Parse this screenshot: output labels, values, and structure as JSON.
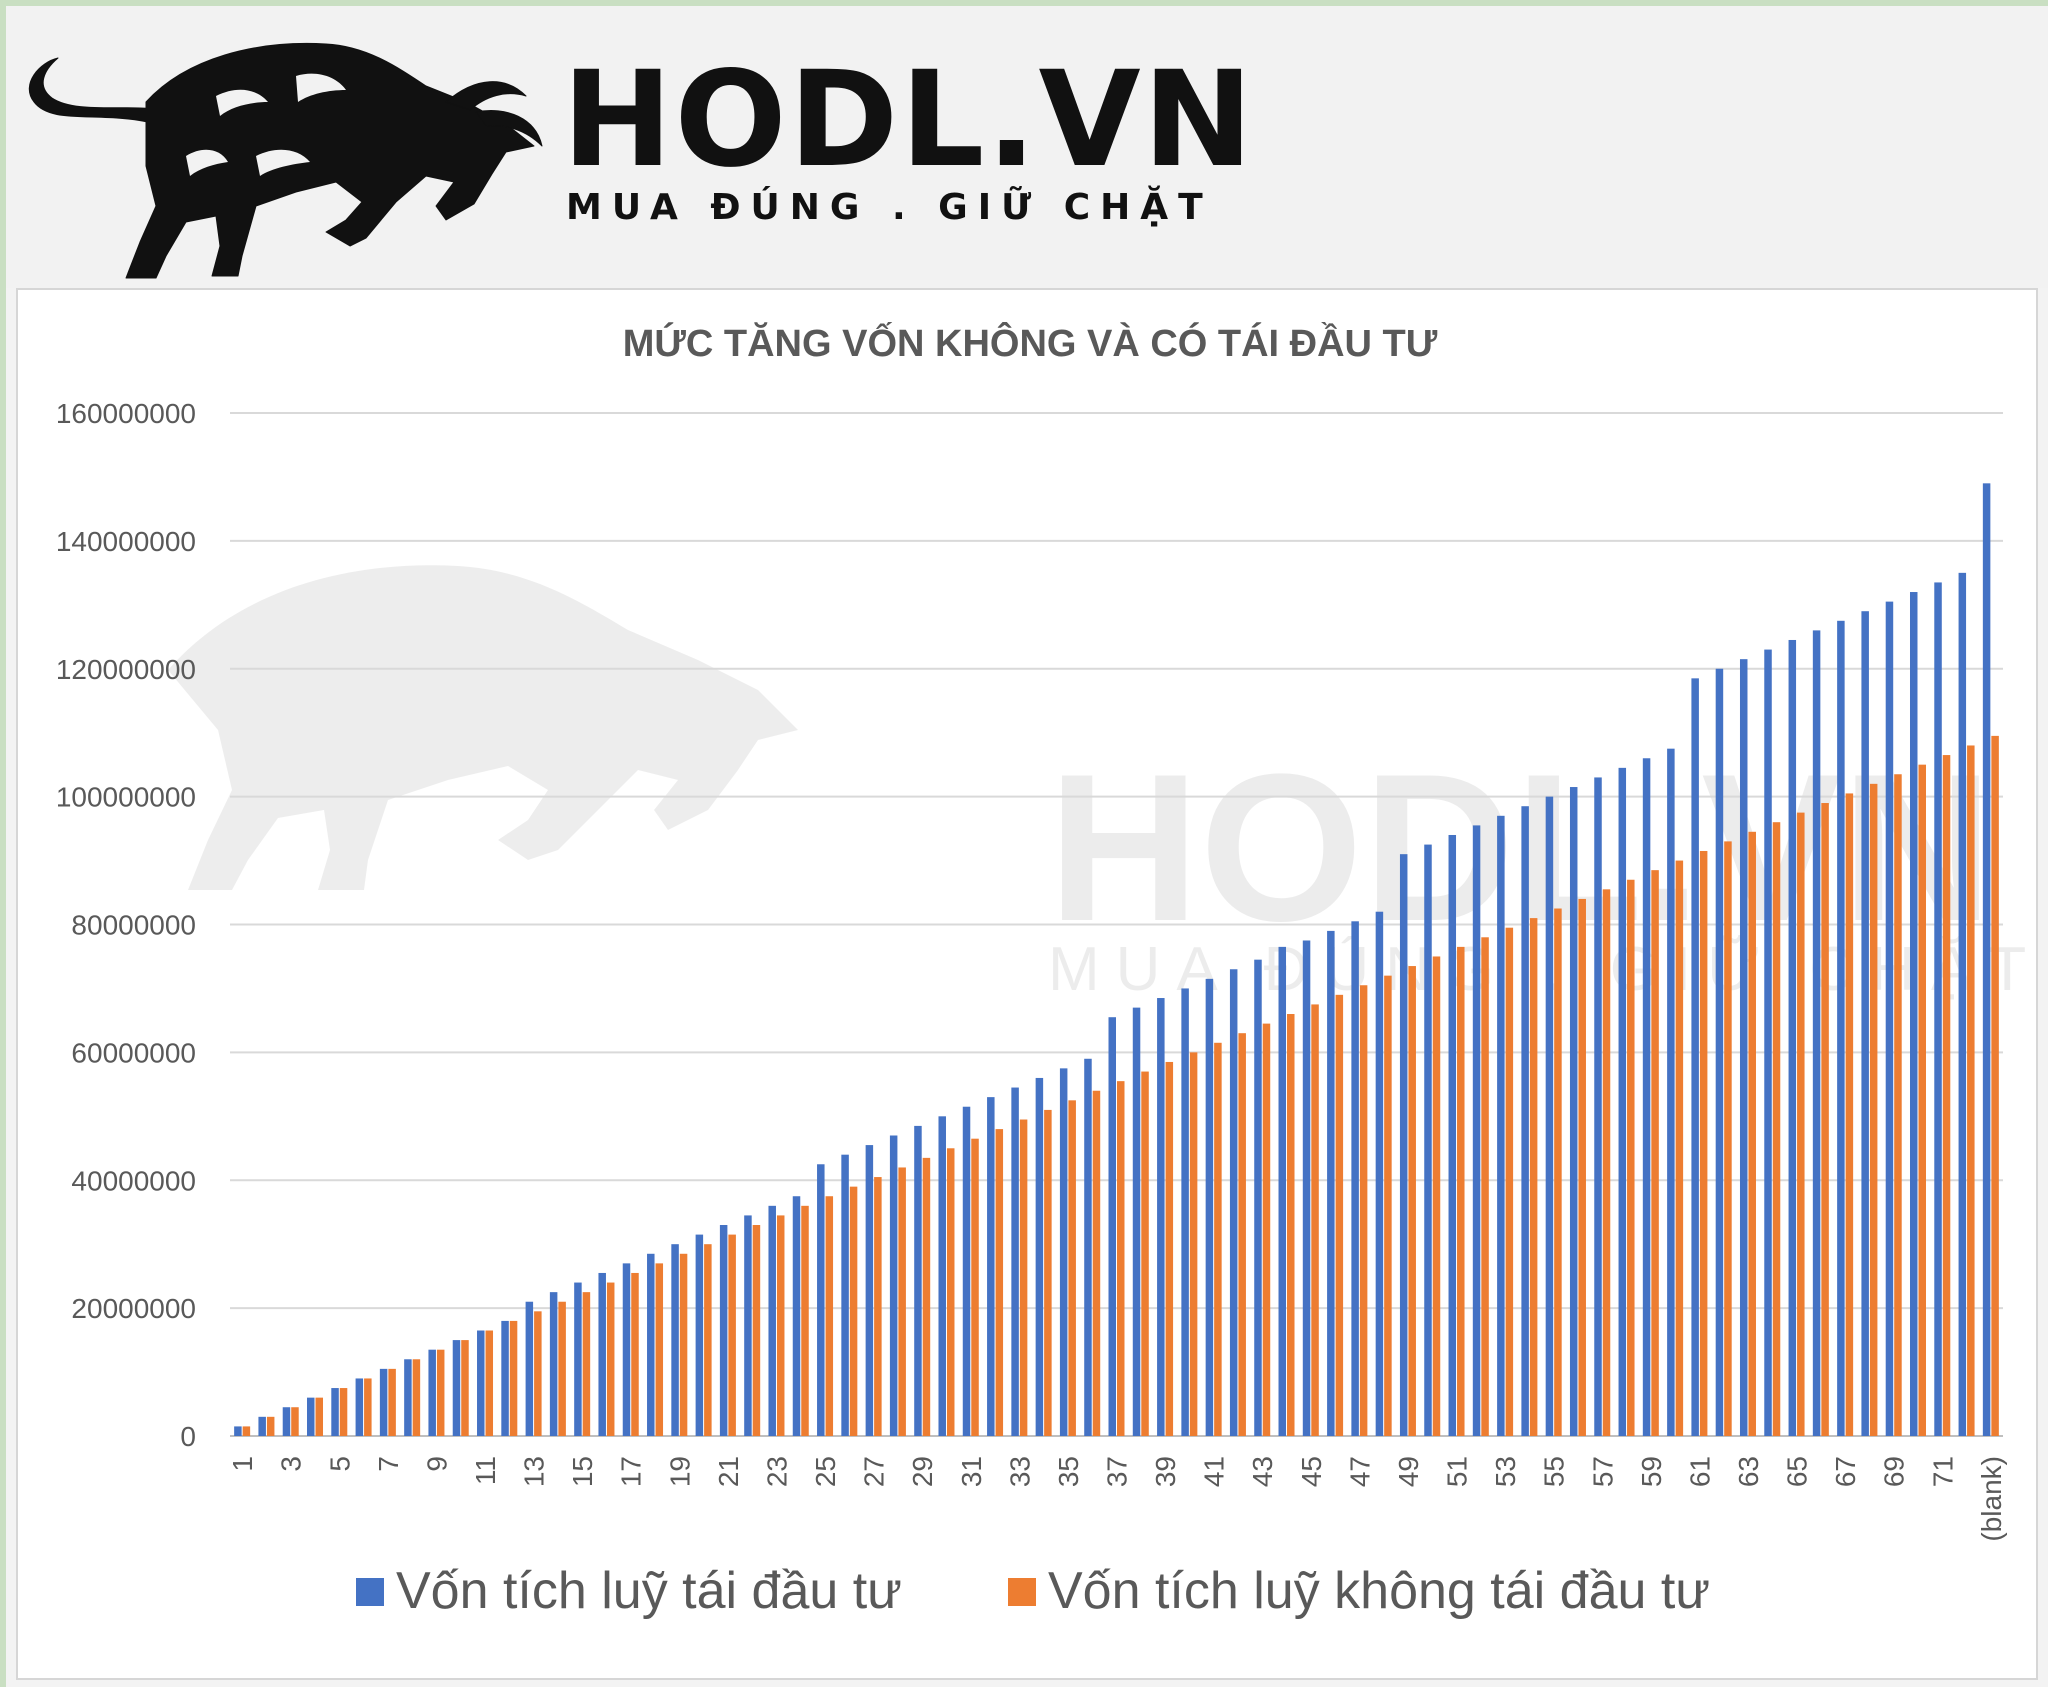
{
  "brand": {
    "name": "HODL.VN",
    "tagline": "MUA ĐÚNG . GIỮ CHẶT"
  },
  "chart_data": {
    "type": "bar",
    "title": "MỨC TĂNG VỐN KHÔNG VÀ CÓ TÁI ĐẦU TƯ",
    "xlabel": "",
    "ylabel": "",
    "ylim": [
      0,
      160000000
    ],
    "yticks": [
      0,
      20000000,
      40000000,
      60000000,
      80000000,
      100000000,
      120000000,
      140000000,
      160000000
    ],
    "ytick_labels": [
      "0",
      "20000000",
      "40000000",
      "60000000",
      "80000000",
      "100000000",
      "120000000",
      "140000000",
      "160000000"
    ],
    "grid": true,
    "legend_position": "bottom",
    "categories": [
      "1",
      "2",
      "3",
      "4",
      "5",
      "6",
      "7",
      "8",
      "9",
      "10",
      "11",
      "12",
      "13",
      "14",
      "15",
      "16",
      "17",
      "18",
      "19",
      "20",
      "21",
      "22",
      "23",
      "24",
      "25",
      "26",
      "27",
      "28",
      "29",
      "30",
      "31",
      "32",
      "33",
      "34",
      "35",
      "36",
      "37",
      "38",
      "39",
      "40",
      "41",
      "42",
      "43",
      "44",
      "45",
      "46",
      "47",
      "48",
      "49",
      "50",
      "51",
      "52",
      "53",
      "54",
      "55",
      "56",
      "57",
      "58",
      "59",
      "60",
      "61",
      "62",
      "63",
      "64",
      "65",
      "66",
      "67",
      "68",
      "69",
      "70",
      "71",
      "72",
      "(blank)"
    ],
    "xtick_labels_shown": [
      "1",
      "3",
      "5",
      "7",
      "9",
      "11",
      "13",
      "15",
      "17",
      "19",
      "21",
      "23",
      "25",
      "27",
      "29",
      "31",
      "33",
      "35",
      "37",
      "39",
      "41",
      "43",
      "45",
      "47",
      "49",
      "51",
      "53",
      "55",
      "57",
      "59",
      "61",
      "63",
      "65",
      "67",
      "69",
      "71",
      "(blank)"
    ],
    "series": [
      {
        "name": "Vốn tích luỹ tái đầu tư",
        "color": "#4472c4",
        "values": [
          1500000,
          3000000,
          4500000,
          6000000,
          7500000,
          9000000,
          10500000,
          12000000,
          13500000,
          15000000,
          16500000,
          18000000,
          21000000,
          22500000,
          24000000,
          25500000,
          27000000,
          28500000,
          30000000,
          31500000,
          33000000,
          34500000,
          36000000,
          37500000,
          42500000,
          44000000,
          45500000,
          47000000,
          48500000,
          50000000,
          51500000,
          53000000,
          54500000,
          56000000,
          57500000,
          59000000,
          65500000,
          67000000,
          68500000,
          70000000,
          71500000,
          73000000,
          74500000,
          76500000,
          77500000,
          79000000,
          80500000,
          82000000,
          91000000,
          92500000,
          94000000,
          95500000,
          97000000,
          98500000,
          100000000,
          101500000,
          103000000,
          104500000,
          106000000,
          107500000,
          118500000,
          120000000,
          121500000,
          123000000,
          124500000,
          126000000,
          127500000,
          129000000,
          130500000,
          132000000,
          133500000,
          135000000,
          149000000
        ]
      },
      {
        "name": "Vốn tích luỹ không tái đầu tư",
        "color": "#ed7d31",
        "values": [
          1500000,
          3000000,
          4500000,
          6000000,
          7500000,
          9000000,
          10500000,
          12000000,
          13500000,
          15000000,
          16500000,
          18000000,
          19500000,
          21000000,
          22500000,
          24000000,
          25500000,
          27000000,
          28500000,
          30000000,
          31500000,
          33000000,
          34500000,
          36000000,
          37500000,
          39000000,
          40500000,
          42000000,
          43500000,
          45000000,
          46500000,
          48000000,
          49500000,
          51000000,
          52500000,
          54000000,
          55500000,
          57000000,
          58500000,
          60000000,
          61500000,
          63000000,
          64500000,
          66000000,
          67500000,
          69000000,
          70500000,
          72000000,
          73500000,
          75000000,
          76500000,
          78000000,
          79500000,
          81000000,
          82500000,
          84000000,
          85500000,
          87000000,
          88500000,
          90000000,
          91500000,
          93000000,
          94500000,
          96000000,
          97500000,
          99000000,
          100500000,
          102000000,
          103500000,
          105000000,
          106500000,
          108000000,
          109500000
        ]
      }
    ]
  }
}
